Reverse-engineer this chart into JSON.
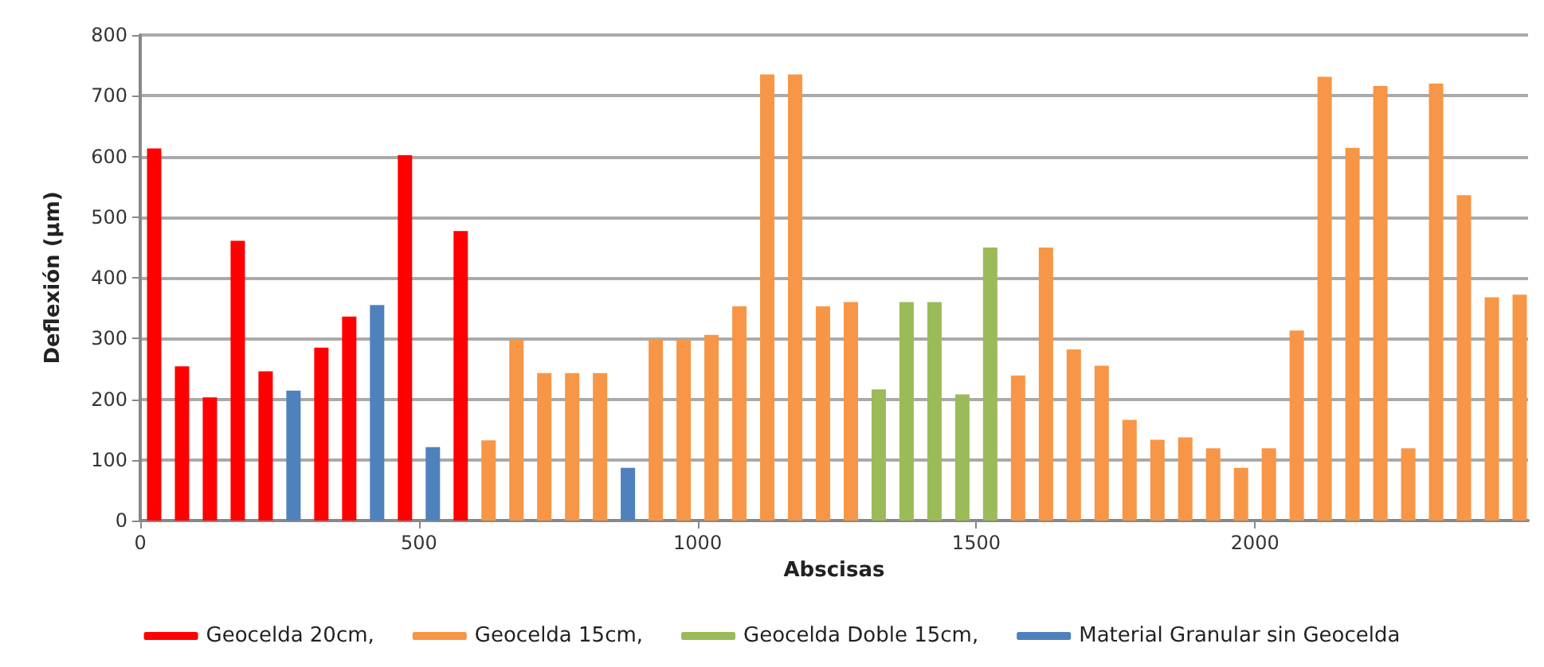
{
  "chart_data": {
    "type": "bar",
    "xlabel": "Abscisas",
    "ylabel": "Deflexión (µm)",
    "xlim": [
      0,
      2490
    ],
    "xticks": [
      0,
      500,
      1000,
      1500,
      2000
    ],
    "ylim": [
      0,
      800
    ],
    "yticks": [
      0,
      100,
      200,
      300,
      400,
      500,
      600,
      700,
      800
    ],
    "grid": "y",
    "legend": "bottom",
    "series": [
      {
        "name": "Geocelda 20cm,",
        "color": "#ff0000",
        "x": [
          25,
          75,
          125,
          175,
          225,
          325,
          375,
          475,
          575
        ],
        "values": [
          613,
          254,
          203,
          461,
          246,
          285,
          336,
          602,
          477
        ]
      },
      {
        "name": "Geocelda 15cm,",
        "color": "#f79646",
        "x": [
          625,
          675,
          725,
          775,
          825,
          925,
          975,
          1025,
          1075,
          1125,
          1175,
          1225,
          1275,
          1575,
          1625,
          1675,
          1725,
          1775,
          1825,
          1875,
          1925,
          1975,
          2025,
          2075,
          2125,
          2175,
          2225,
          2275,
          2325,
          2375,
          2425,
          2475
        ],
        "values": [
          132,
          298,
          243,
          243,
          243,
          298,
          298,
          306,
          353,
          735,
          735,
          353,
          360,
          239,
          450,
          282,
          255,
          166,
          133,
          137,
          119,
          87,
          119,
          313,
          731,
          614,
          716,
          119,
          720,
          536,
          368,
          372
        ]
      },
      {
        "name": "Geocelda Doble 15cm,",
        "color": "#9bbb59",
        "x": [
          1325,
          1375,
          1425,
          1475,
          1525
        ],
        "values": [
          216,
          360,
          360,
          208,
          450
        ]
      },
      {
        "name": "Material Granular sin Geocelda",
        "color": "#4f81bd",
        "x": [
          275,
          425,
          525,
          875
        ],
        "values": [
          214,
          355,
          121,
          87
        ]
      }
    ]
  }
}
